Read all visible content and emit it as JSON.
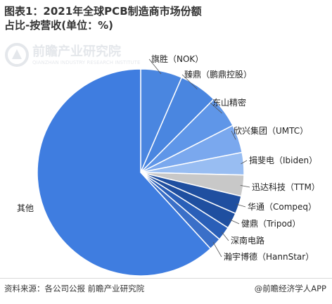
{
  "title": "图表1：2021年全球PCB制造商市场份额占比-按营收(单位：%)",
  "watermark": {
    "name": "前瞻产业研究院",
    "tagline": "QIANZHAN INDUSTRY RESEARCH INSTITUTE"
  },
  "source": "资料来源：各公司公报 前瞻产业研究院",
  "brand": "@前瞻经济学人APP",
  "chart_data": {
    "type": "pie",
    "title": "图表1：2021年全球PCB制造商市场份额占比-按营收(单位：%)",
    "start": "12 o'clock",
    "direction": "clockwise",
    "slices": [
      {
        "label": "旗胜（NOK）",
        "value": 6.5,
        "color": "#4a86e0"
      },
      {
        "label": "臻鼎（鹏鼎控股）",
        "value": 6.0,
        "color": "#4a86e0"
      },
      {
        "label": "东山精密",
        "value": 5.0,
        "color": "#5f96e8"
      },
      {
        "label": "欣兴集团（UMTC）",
        "value": 4.4,
        "color": "#7aa8ee"
      },
      {
        "label": "揖斐电（Ibiden）",
        "value": 3.5,
        "color": "#98bdf2"
      },
      {
        "label": "迅达科技（TTM）",
        "value": 3.3,
        "color": "#c8c8c8"
      },
      {
        "label": "华通（Compeq）",
        "value": 2.8,
        "color": "#1f4fa0"
      },
      {
        "label": "健鼎（Tripod）",
        "value": 2.5,
        "color": "#1f4fa0"
      },
      {
        "label": "深南电路",
        "value": 2.2,
        "color": "#2a5fb8"
      },
      {
        "label": "瀚宇博德（HannStar）",
        "value": 2.0,
        "color": "#3a6fc8"
      },
      {
        "label": "其他",
        "value": 61.8,
        "color": "#3f7de0"
      }
    ]
  }
}
